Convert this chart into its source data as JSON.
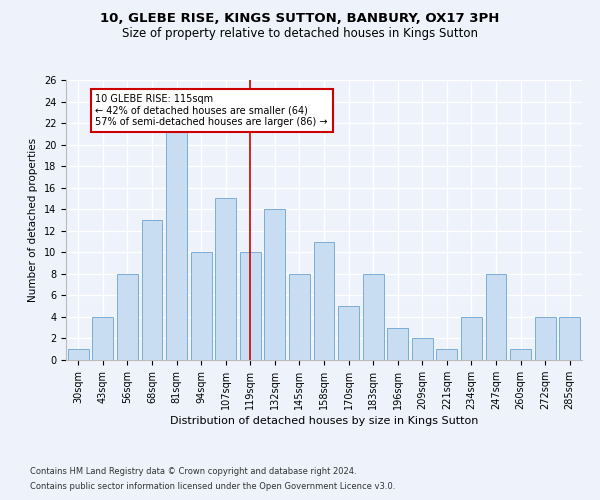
{
  "title1": "10, GLEBE RISE, KINGS SUTTON, BANBURY, OX17 3PH",
  "title2": "Size of property relative to detached houses in Kings Sutton",
  "xlabel": "Distribution of detached houses by size in Kings Sutton",
  "ylabel": "Number of detached properties",
  "categories": [
    "30sqm",
    "43sqm",
    "56sqm",
    "68sqm",
    "81sqm",
    "94sqm",
    "107sqm",
    "119sqm",
    "132sqm",
    "145sqm",
    "158sqm",
    "170sqm",
    "183sqm",
    "196sqm",
    "209sqm",
    "221sqm",
    "234sqm",
    "247sqm",
    "260sqm",
    "272sqm",
    "285sqm"
  ],
  "values": [
    1,
    4,
    8,
    13,
    22,
    10,
    15,
    10,
    14,
    8,
    11,
    5,
    8,
    3,
    2,
    1,
    4,
    8,
    1,
    4,
    4
  ],
  "bar_color": "#c9ddf2",
  "bar_edge_color": "#7badd6",
  "vline_x": 7.0,
  "vline_color": "#cc0000",
  "marker_label": "10 GLEBE RISE: 115sqm",
  "marker_sub1": "← 42% of detached houses are smaller (64)",
  "marker_sub2": "57% of semi-detached houses are larger (86) →",
  "annotation_box_color": "#ffffff",
  "annotation_box_edge": "#cc0000",
  "ylim": [
    0,
    26
  ],
  "yticks": [
    0,
    2,
    4,
    6,
    8,
    10,
    12,
    14,
    16,
    18,
    20,
    22,
    24,
    26
  ],
  "footnote1": "Contains HM Land Registry data © Crown copyright and database right 2024.",
  "footnote2": "Contains public sector information licensed under the Open Government Licence v3.0.",
  "bg_color": "#edf2fb",
  "grid_color": "#ffffff",
  "title1_fontsize": 9.5,
  "title2_fontsize": 8.5,
  "xlabel_fontsize": 8,
  "ylabel_fontsize": 7.5,
  "tick_fontsize": 7,
  "footnote_fontsize": 6,
  "annot_fontsize": 7
}
